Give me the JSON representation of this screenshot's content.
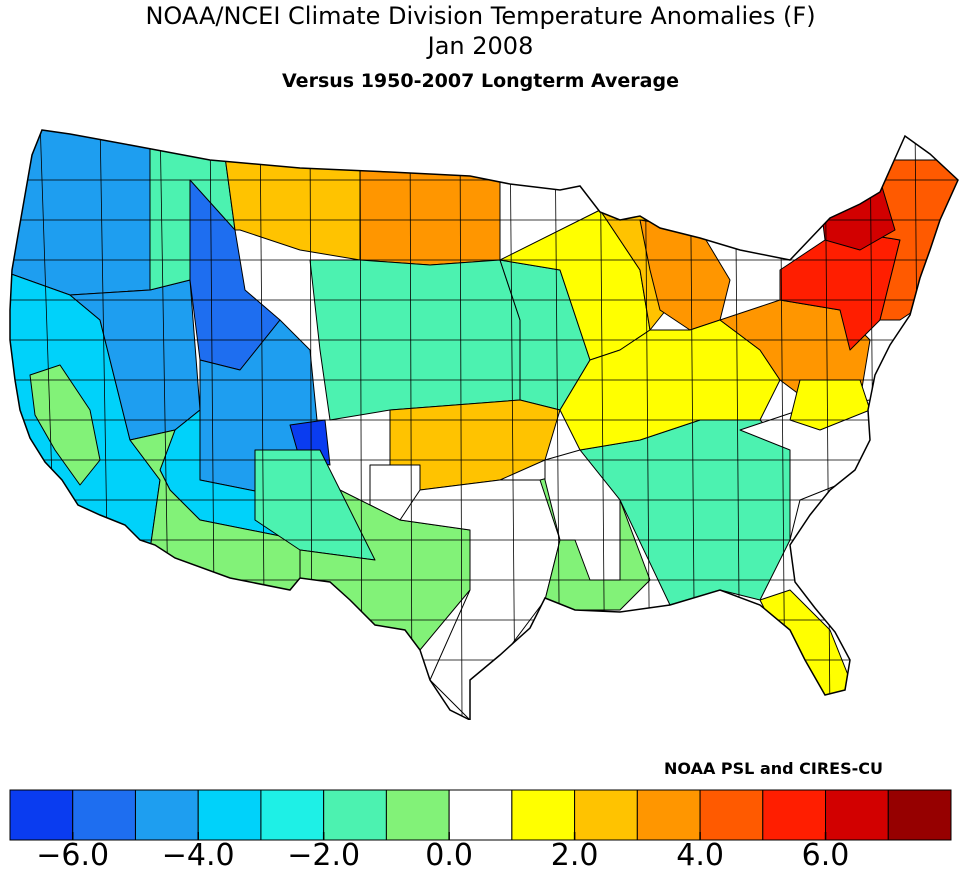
{
  "title": {
    "line1": "NOAA/NCEI Climate Division Temperature Anomalies (F)",
    "line2": "Jan 2008",
    "line3": "Versus 1950-2007 Longterm Average"
  },
  "credit": "NOAA PSL and CIRES-CU",
  "legend": {
    "colors": [
      "#0a3cf0",
      "#1e6ef0",
      "#1e9ef0",
      "#00d2fa",
      "#1ef0e6",
      "#4cf2b0",
      "#82f278",
      "#ffffff",
      "#ffff00",
      "#ffc300",
      "#ff9600",
      "#ff5a00",
      "#ff1e00",
      "#d20000",
      "#960000"
    ],
    "ticks": [
      {
        "boundary": 1,
        "label": "−6.0"
      },
      {
        "boundary": 3,
        "label": "−4.0"
      },
      {
        "boundary": 5,
        "label": "−2.0"
      },
      {
        "boundary": 7,
        "label": "0.0"
      },
      {
        "boundary": 9,
        "label": "2.0"
      },
      {
        "boundary": 11,
        "label": "4.0"
      },
      {
        "boundary": 13,
        "label": "6.0"
      }
    ]
  },
  "map": {
    "regions": [
      {
        "name": "pacific-northwest",
        "color": "#1e9ef0"
      },
      {
        "name": "california-coast",
        "color": "#00d2fa"
      },
      {
        "name": "central-valley",
        "color": "#82f278"
      },
      {
        "name": "great-basin",
        "color": "#1e9ef0"
      },
      {
        "name": "idaho-montana-west",
        "color": "#4cf2b0"
      },
      {
        "name": "northern-rockies",
        "color": "#1e6ef0"
      },
      {
        "name": "wyoming-colorado",
        "color": "#1e9ef0"
      },
      {
        "name": "colorado-core",
        "color": "#0a3cf0"
      },
      {
        "name": "arizona-nm-west",
        "color": "#00d2fa"
      },
      {
        "name": "southwest-desert",
        "color": "#82f278"
      },
      {
        "name": "new-mexico",
        "color": "#4cf2b0"
      },
      {
        "name": "montana-east",
        "color": "#ffc300"
      },
      {
        "name": "dakotas",
        "color": "#ff9600"
      },
      {
        "name": "nebraska-kansas",
        "color": "#4cf2b0"
      },
      {
        "name": "iowa-missouri",
        "color": "#4cf2b0"
      },
      {
        "name": "oklahoma",
        "color": "#ffc300"
      },
      {
        "name": "texas-panhandle",
        "color": "#ffffff"
      },
      {
        "name": "texas-west",
        "color": "#82f278"
      },
      {
        "name": "texas-east",
        "color": "#ffffff"
      },
      {
        "name": "gulf-coast",
        "color": "#82f278"
      },
      {
        "name": "southeast",
        "color": "#4cf2b0"
      },
      {
        "name": "florida",
        "color": "#ffff00"
      },
      {
        "name": "upper-midwest",
        "color": "#ffff00"
      },
      {
        "name": "great-lakes",
        "color": "#ffc300"
      },
      {
        "name": "michigan",
        "color": "#ff9600"
      },
      {
        "name": "ohio-valley",
        "color": "#ffff00"
      },
      {
        "name": "mid-atlantic",
        "color": "#ff9600"
      },
      {
        "name": "new-york",
        "color": "#ff1e00"
      },
      {
        "name": "new-england",
        "color": "#ff5a00"
      },
      {
        "name": "adirondacks",
        "color": "#d20000"
      },
      {
        "name": "carolinas",
        "color": "#ffffff"
      },
      {
        "name": "virginia",
        "color": "#ffff00"
      },
      {
        "name": "arkansas-louisiana",
        "color": "#ffffff"
      }
    ]
  }
}
